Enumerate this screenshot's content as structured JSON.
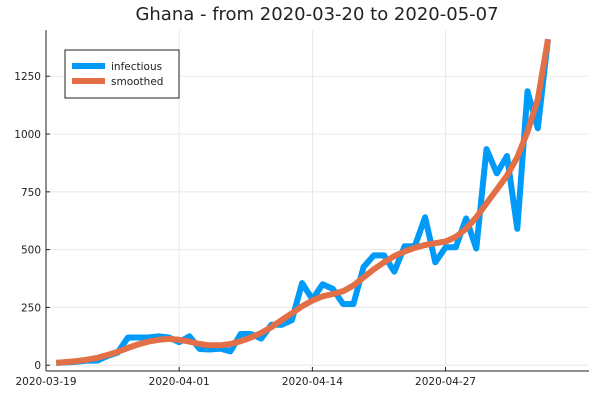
{
  "chart_data": {
    "type": "line",
    "title": "Ghana - from 2020-03-20 to 2020-05-07",
    "xlabel": "",
    "ylabel": "",
    "x_start": "2020-03-20",
    "x_end": "2020-05-07",
    "xlim": [
      "2020-03-19",
      "2020-05-11"
    ],
    "ylim": [
      -25,
      1450
    ],
    "x_ticks": [
      {
        "date": "2020-03-19",
        "label": "2020-03-19"
      },
      {
        "date": "2020-04-01",
        "label": "2020-04-01"
      },
      {
        "date": "2020-04-14",
        "label": "2020-04-14"
      },
      {
        "date": "2020-04-27",
        "label": "2020-04-27"
      }
    ],
    "y_ticks": [
      0,
      250,
      500,
      750,
      1000,
      1250
    ],
    "grid": true,
    "legend_position": "top-left",
    "series": [
      {
        "name": "infectious",
        "color": "#009af9",
        "points": [
          [
            "2020-03-20",
            10
          ],
          [
            "2020-03-21",
            12
          ],
          [
            "2020-03-22",
            15
          ],
          [
            "2020-03-23",
            20
          ],
          [
            "2020-03-24",
            20
          ],
          [
            "2020-03-25",
            40
          ],
          [
            "2020-03-26",
            55
          ],
          [
            "2020-03-27",
            120
          ],
          [
            "2020-03-28",
            120
          ],
          [
            "2020-03-29",
            120
          ],
          [
            "2020-03-30",
            125
          ],
          [
            "2020-03-31",
            120
          ],
          [
            "2020-04-01",
            100
          ],
          [
            "2020-04-02",
            125
          ],
          [
            "2020-04-03",
            70
          ],
          [
            "2020-04-04",
            68
          ],
          [
            "2020-04-05",
            72
          ],
          [
            "2020-04-06",
            60
          ],
          [
            "2020-04-07",
            135
          ],
          [
            "2020-04-08",
            135
          ],
          [
            "2020-04-09",
            115
          ],
          [
            "2020-04-10",
            175
          ],
          [
            "2020-04-11",
            175
          ],
          [
            "2020-04-12",
            195
          ],
          [
            "2020-04-13",
            355
          ],
          [
            "2020-04-14",
            285
          ],
          [
            "2020-04-15",
            350
          ],
          [
            "2020-04-16",
            330
          ],
          [
            "2020-04-17",
            265
          ],
          [
            "2020-04-18",
            265
          ],
          [
            "2020-04-19",
            425
          ],
          [
            "2020-04-20",
            475
          ],
          [
            "2020-04-21",
            475
          ],
          [
            "2020-04-22",
            405
          ],
          [
            "2020-04-23",
            515
          ],
          [
            "2020-04-24",
            515
          ],
          [
            "2020-04-25",
            640
          ],
          [
            "2020-04-26",
            445
          ],
          [
            "2020-04-27",
            510
          ],
          [
            "2020-04-28",
            510
          ],
          [
            "2020-04-29",
            635
          ],
          [
            "2020-04-30",
            505
          ],
          [
            "2020-05-01",
            935
          ],
          [
            "2020-05-02",
            830
          ],
          [
            "2020-05-03",
            905
          ],
          [
            "2020-05-04",
            590
          ],
          [
            "2020-05-05",
            1185
          ],
          [
            "2020-05-06",
            1025
          ],
          [
            "2020-05-07",
            1410
          ]
        ]
      },
      {
        "name": "smoothed",
        "color": "#e26f46",
        "points": [
          [
            "2020-03-20",
            10
          ],
          [
            "2020-03-21",
            14
          ],
          [
            "2020-03-22",
            18
          ],
          [
            "2020-03-23",
            24
          ],
          [
            "2020-03-24",
            32
          ],
          [
            "2020-03-25",
            44
          ],
          [
            "2020-03-26",
            58
          ],
          [
            "2020-03-27",
            75
          ],
          [
            "2020-03-28",
            90
          ],
          [
            "2020-03-29",
            102
          ],
          [
            "2020-03-30",
            110
          ],
          [
            "2020-03-31",
            114
          ],
          [
            "2020-04-01",
            110
          ],
          [
            "2020-04-02",
            102
          ],
          [
            "2020-04-03",
            92
          ],
          [
            "2020-04-04",
            86
          ],
          [
            "2020-04-05",
            86
          ],
          [
            "2020-04-06",
            92
          ],
          [
            "2020-04-07",
            104
          ],
          [
            "2020-04-08",
            120
          ],
          [
            "2020-04-09",
            140
          ],
          [
            "2020-04-10",
            165
          ],
          [
            "2020-04-11",
            195
          ],
          [
            "2020-04-12",
            225
          ],
          [
            "2020-04-13",
            255
          ],
          [
            "2020-04-14",
            280
          ],
          [
            "2020-04-15",
            298
          ],
          [
            "2020-04-16",
            308
          ],
          [
            "2020-04-17",
            320
          ],
          [
            "2020-04-18",
            345
          ],
          [
            "2020-04-19",
            380
          ],
          [
            "2020-04-20",
            415
          ],
          [
            "2020-04-21",
            445
          ],
          [
            "2020-04-22",
            472
          ],
          [
            "2020-04-23",
            492
          ],
          [
            "2020-04-24",
            508
          ],
          [
            "2020-04-25",
            520
          ],
          [
            "2020-04-26",
            528
          ],
          [
            "2020-04-27",
            535
          ],
          [
            "2020-04-28",
            555
          ],
          [
            "2020-04-29",
            590
          ],
          [
            "2020-04-30",
            640
          ],
          [
            "2020-05-01",
            700
          ],
          [
            "2020-05-02",
            760
          ],
          [
            "2020-05-03",
            820
          ],
          [
            "2020-05-04",
            900
          ],
          [
            "2020-05-05",
            1010
          ],
          [
            "2020-05-06",
            1150
          ],
          [
            "2020-05-07",
            1410
          ]
        ]
      }
    ]
  }
}
